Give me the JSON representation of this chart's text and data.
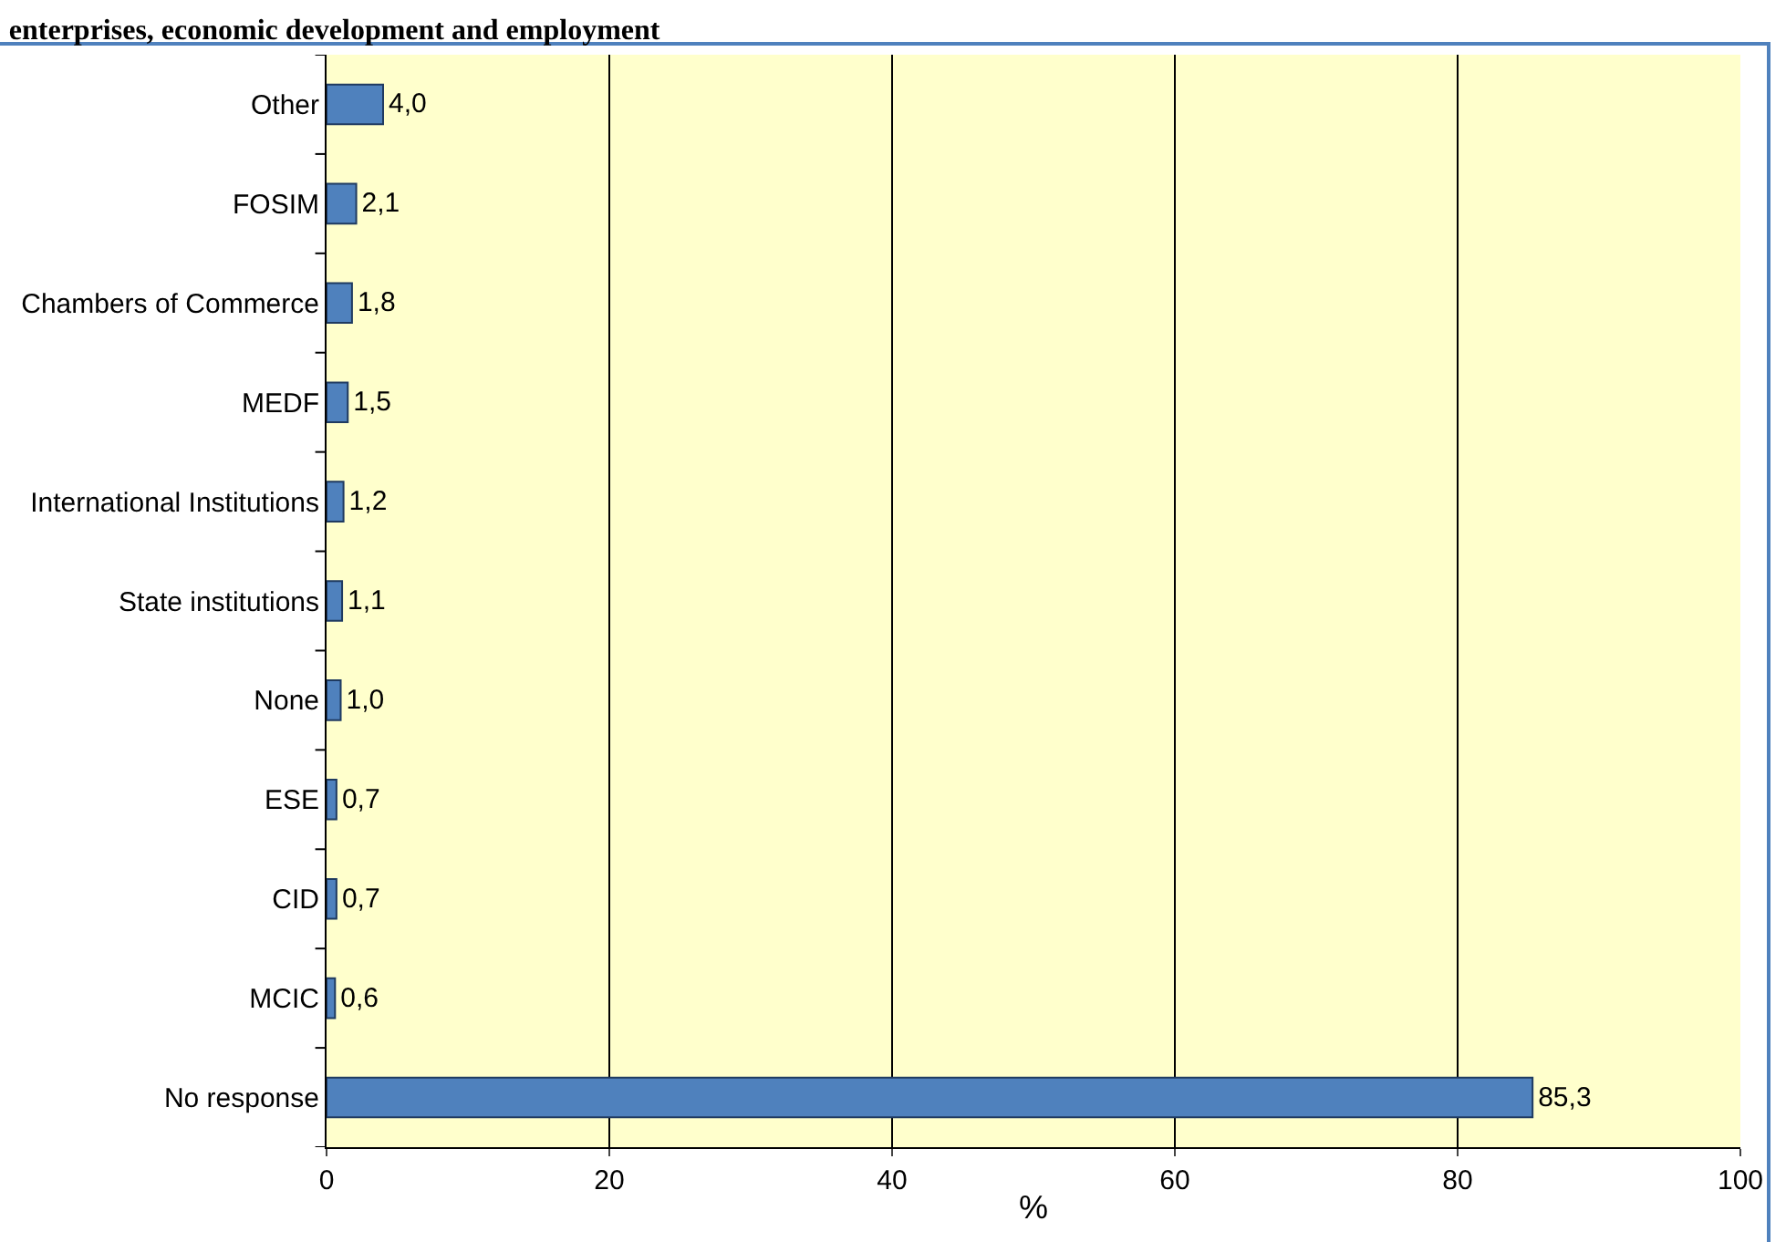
{
  "chart_data": {
    "type": "bar",
    "orientation": "horizontal",
    "title": "enterprises, economic development and employment",
    "xlabel": "%",
    "categories": [
      "Other",
      "FOSIM",
      "Chambers of Commerce",
      "MEDF",
      "International Institutions",
      "State institutions",
      "None",
      "ESE",
      "CID",
      "MCIC",
      "No response"
    ],
    "values": [
      4.0,
      2.1,
      1.8,
      1.5,
      1.2,
      1.1,
      1.0,
      0.7,
      0.7,
      0.6,
      85.3
    ],
    "value_labels": [
      "4,0",
      "2,1",
      "1,8",
      "1,5",
      "1,2",
      "1,1",
      "1,0",
      "0,7",
      "0,7",
      "0,6",
      "85,3"
    ],
    "color": "#4f81bd",
    "xlim": [
      0,
      100
    ],
    "xticks": [
      0,
      20,
      40,
      60,
      80,
      100
    ],
    "grid": "x",
    "legend": false
  }
}
